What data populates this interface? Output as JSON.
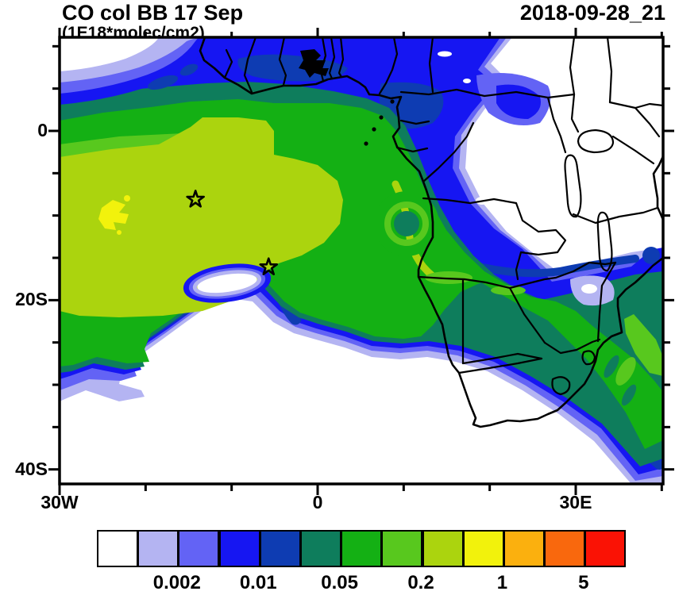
{
  "header": {
    "title": "CO col BB 17 Sep",
    "subtitle": "(1E18*molec/cm2)",
    "timestamp": "2018-09-28_21"
  },
  "axes": {
    "y_tick_labels": [
      "0",
      "20S",
      "40S"
    ],
    "x_tick_labels": [
      "30W",
      "0",
      "30E"
    ]
  },
  "colorbar": {
    "labels": [
      "0.002",
      "0.01",
      "0.05",
      "0.2",
      "1",
      "5"
    ],
    "colors": [
      "#ffffff",
      "#b4b4f2",
      "#6363f5",
      "#1616f2",
      "#0e3cb2",
      "#0e7d5c",
      "#14b014",
      "#58c81e",
      "#abd40e",
      "#f2f20c",
      "#fbb00e",
      "#f9680d",
      "#fa1205"
    ]
  },
  "palette": {
    "c0": "#ffffff",
    "c1": "#b4b4f2",
    "c2": "#6363f5",
    "c3": "#1616f2",
    "c4": "#0e3cb2",
    "c5": "#0e7d5c",
    "c6": "#14b014",
    "c7": "#58c81e",
    "c8": "#abd40e",
    "c9": "#f2f20c",
    "c10": "#fbb00e",
    "c11": "#f9680d",
    "c12": "#fa1205",
    "line": "#000000"
  },
  "chart_data": {
    "type": "heatmap",
    "title": "CO col BB 17 Sep",
    "units": "1E18*molec/cm2",
    "model_time": "2018-09-28_21",
    "region": "Africa and South Atlantic",
    "lon_range": [
      -30,
      40
    ],
    "lat_range": [
      -42,
      11
    ],
    "x_tick_labels": [
      "30W",
      "0",
      "30E"
    ],
    "y_tick_labels": [
      "0",
      "20S",
      "40S"
    ],
    "contour_levels_est": [
      0.001,
      0.002,
      0.005,
      0.01,
      0.02,
      0.05,
      0.1,
      0.2,
      0.5,
      1,
      2,
      5
    ],
    "labeled_levels": [
      0.002,
      0.01,
      0.05,
      0.2,
      1,
      5
    ],
    "colors": [
      "#ffffff",
      "#b4b4f2",
      "#6363f5",
      "#1616f2",
      "#0e3cb2",
      "#0e7d5c",
      "#14b014",
      "#58c81e",
      "#abd40e",
      "#f2f20c",
      "#fbb00e",
      "#f9680d",
      "#fa1205"
    ],
    "markers": [
      {
        "symbol": "star",
        "lon": -14.2,
        "lat": -8.1
      },
      {
        "symbol": "star",
        "lon": -5.7,
        "lat": -16.1
      }
    ],
    "description": "Filled-contour map of biomass-burning CO column: plume core (0.2-1E18) over the SE Atlantic off Angola with yellow maxima near 25W/8S, green-to-blue fringes over central/southern Africa, clean white air over the subtropical South Atlantic, East Africa and the NW corner; star markers at Ascension and St Helena islands."
  }
}
